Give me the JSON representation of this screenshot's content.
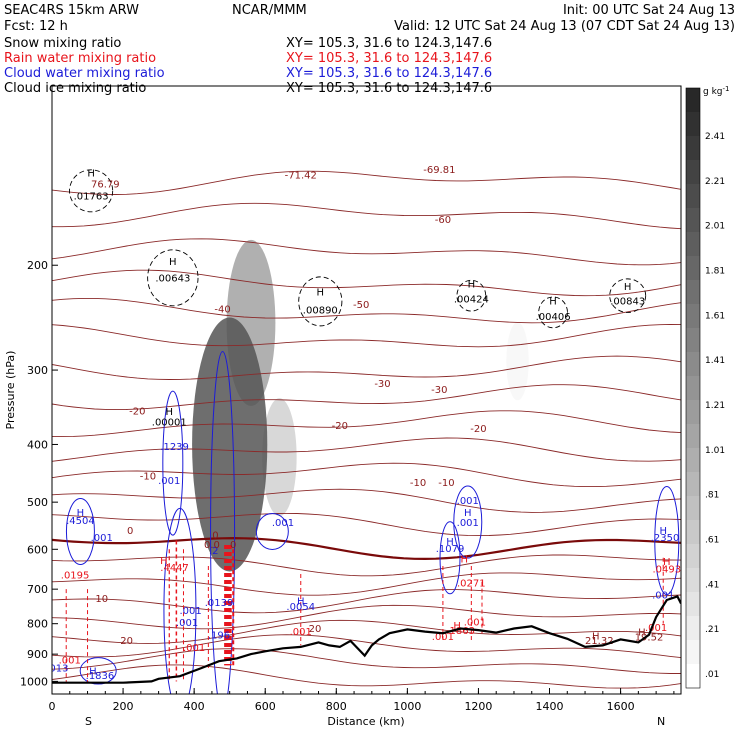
{
  "header": {
    "model": "SEAC4RS 15km ARW",
    "forecast": "Fcst:    12 h",
    "center": "NCAR/MMM",
    "init": "Init: 00 UTC Sat 24 Aug 13",
    "valid": "Valid: 12 UTC Sat 24 Aug 13 (07 CDT Sat 24 Aug 13)"
  },
  "legend": [
    {
      "name": "Snow mixing ratio",
      "xy": "XY= 105.3, 31.6 to 124.3,147.6",
      "color": "#000000"
    },
    {
      "name": "Rain water mixing ratio",
      "xy": "XY= 105.3, 31.6 to 124.3,147.6",
      "color": "#e8141c"
    },
    {
      "name": "Cloud water mixing ratio",
      "xy": "XY= 105.3, 31.6 to 124.3,147.6",
      "color": "#1c1cd8"
    },
    {
      "name": "Cloud ice mixing ratio",
      "xy": "XY= 105.3, 31.6 to 124.3,147.6",
      "color": "#000000"
    }
  ],
  "chart_data": {
    "type": "heatmap",
    "xlabel": "Distance (km)",
    "ylabel": "Pressure (hPa)",
    "x_ticks": [
      0,
      200,
      400,
      600,
      800,
      1000,
      1200,
      1400,
      1600
    ],
    "y_ticks": [
      200,
      300,
      400,
      500,
      600,
      700,
      800,
      900,
      1000
    ],
    "xlim": [
      0,
      1770
    ],
    "ylim": [
      1050,
      100
    ],
    "y_scale": "log",
    "direction_labels": {
      "left": "S",
      "right": "N"
    },
    "colorbar": {
      "units": "g kg",
      "units_sup": "-1",
      "labels": [
        "2.41",
        "2.21",
        "2.01",
        "1.81",
        "1.61",
        "1.41",
        "1.21",
        "1.01",
        ".81",
        ".61",
        ".41",
        ".21",
        ".01"
      ],
      "levels": 25
    },
    "snow_shading": [
      {
        "x": 500,
        "p": 400,
        "value": 2.3
      },
      {
        "x": 560,
        "p": 250,
        "value": 1.2
      },
      {
        "x": 640,
        "p": 420,
        "value": 0.6
      },
      {
        "x": 1310,
        "p": 290,
        "value": 0.1
      }
    ],
    "isotherms": [
      {
        "label": "-71.42",
        "x": 700,
        "p": 143
      },
      {
        "label": "-69.81",
        "x": 1090,
        "p": 140
      },
      {
        "label": "-60",
        "x": 1100,
        "p": 170
      },
      {
        "label": "-50",
        "x": 870,
        "p": 236
      },
      {
        "label": "-40",
        "x": 480,
        "p": 240
      },
      {
        "label": "-30",
        "x": 930,
        "p": 320
      },
      {
        "label": "-30",
        "x": 1090,
        "p": 328
      },
      {
        "label": "-20",
        "x": 240,
        "p": 356
      },
      {
        "label": "-20",
        "x": 810,
        "p": 377
      },
      {
        "label": "-20",
        "x": 1200,
        "p": 381
      },
      {
        "label": "-10",
        "x": 270,
        "p": 458
      },
      {
        "label": "-10",
        "x": 1030,
        "p": 470
      },
      {
        "label": "-10",
        "x": 1110,
        "p": 470
      },
      {
        "label": "0",
        "x": 220,
        "p": 565
      },
      {
        "label": "0",
        "x": 460,
        "p": 575
      },
      {
        "label": "10",
        "x": 140,
        "p": 736
      },
      {
        "label": "20",
        "x": 210,
        "p": 866
      },
      {
        "label": "20",
        "x": 740,
        "p": 826
      }
    ],
    "annotations": [
      {
        "text": "H",
        "x": 110,
        "p": 142,
        "color": "#000000"
      },
      {
        "text": ".01763",
        "x": 110,
        "p": 155,
        "color": "#000000"
      },
      {
        "text": "76.79",
        "x": 150,
        "p": 148,
        "color": "#8b1a1a"
      },
      {
        "text": "H",
        "x": 340,
        "p": 200,
        "color": "#000000"
      },
      {
        "text": ".00643",
        "x": 340,
        "p": 213,
        "color": "#000000"
      },
      {
        "text": "H",
        "x": 755,
        "p": 225,
        "color": "#000000"
      },
      {
        "text": ".00890",
        "x": 755,
        "p": 241,
        "color": "#000000"
      },
      {
        "text": "H",
        "x": 1180,
        "p": 218,
        "color": "#000000"
      },
      {
        "text": ".00424",
        "x": 1180,
        "p": 231,
        "color": "#000000"
      },
      {
        "text": "H",
        "x": 1410,
        "p": 233,
        "color": "#000000"
      },
      {
        "text": ".00406",
        "x": 1410,
        "p": 247,
        "color": "#000000"
      },
      {
        "text": "H",
        "x": 1620,
        "p": 220,
        "color": "#000000"
      },
      {
        "text": ".00843",
        "x": 1620,
        "p": 233,
        "color": "#000000"
      },
      {
        "text": "H",
        "x": 330,
        "p": 357,
        "color": "#000000"
      },
      {
        "text": ".00001",
        "x": 330,
        "p": 372,
        "color": "#000000"
      },
      {
        "text": ".1239",
        "x": 345,
        "p": 409,
        "color": "#1c1cd8"
      },
      {
        "text": ".001",
        "x": 330,
        "p": 466,
        "color": "#1c1cd8"
      },
      {
        "text": "H",
        "x": 80,
        "p": 528,
        "color": "#1c1cd8"
      },
      {
        "text": ".4504",
        "x": 80,
        "p": 544,
        "color": "#1c1cd8"
      },
      {
        "text": ".001",
        "x": 140,
        "p": 581,
        "color": "#1c1cd8"
      },
      {
        "text": ".001",
        "x": 650,
        "p": 548,
        "color": "#1c1cd8"
      },
      {
        "text": ".001",
        "x": 1170,
        "p": 504,
        "color": "#1c1cd8"
      },
      {
        "text": "H",
        "x": 1170,
        "p": 527,
        "color": "#1c1cd8"
      },
      {
        "text": ".001",
        "x": 1170,
        "p": 548,
        "color": "#1c1cd8"
      },
      {
        "text": "H",
        "x": 1120,
        "p": 590,
        "color": "#1c1cd8"
      },
      {
        "text": ".1079",
        "x": 1120,
        "p": 606,
        "color": "#1c1cd8"
      },
      {
        "text": "H",
        "x": 1720,
        "p": 565,
        "color": "#1c1cd8"
      },
      {
        "text": ".2350",
        "x": 1725,
        "p": 581,
        "color": "#1c1cd8"
      },
      {
        "text": "H",
        "x": 315,
        "p": 635,
        "color": "#e8141c"
      },
      {
        "text": ".4447",
        "x": 345,
        "p": 653,
        "color": "#e8141c"
      },
      {
        "text": ".0195",
        "x": 65,
        "p": 672,
        "color": "#e8141c"
      },
      {
        "text": ".2",
        "x": 455,
        "p": 611,
        "color": "#1c1cd8"
      },
      {
        "text": "0.0",
        "x": 450,
        "p": 597,
        "color": "#8b1a1a"
      },
      {
        "text": "0",
        "x": 510,
        "p": 597,
        "color": "#8b1a1a"
      },
      {
        "text": "H",
        "x": 700,
        "p": 743,
        "color": "#1c1cd8"
      },
      {
        "text": ".0054",
        "x": 700,
        "p": 759,
        "color": "#1c1cd8"
      },
      {
        "text": ".0139",
        "x": 470,
        "p": 747,
        "color": "#1c1cd8"
      },
      {
        "text": ".001",
        "x": 390,
        "p": 771,
        "color": "#1c1cd8"
      },
      {
        "text": ".001",
        "x": 380,
        "p": 807,
        "color": "#1c1cd8"
      },
      {
        "text": ".196",
        "x": 470,
        "p": 847,
        "color": "#1c1cd8"
      },
      {
        "text": ".001",
        "x": 400,
        "p": 889,
        "color": "#e8141c"
      },
      {
        "text": "H",
        "x": 1160,
        "p": 631,
        "color": "#e8141c"
      },
      {
        "text": ".0271",
        "x": 1180,
        "p": 693,
        "color": "#e8141c"
      },
      {
        "text": "H",
        "x": 1730,
        "p": 637,
        "color": "#e8141c"
      },
      {
        "text": ".0493",
        "x": 1730,
        "p": 656,
        "color": "#e8141c"
      },
      {
        "text": ".001",
        "x": 1720,
        "p": 726,
        "color": "#1c1cd8"
      },
      {
        "text": ".001",
        "x": 1190,
        "p": 806,
        "color": "#e8141c"
      },
      {
        "text": "H",
        "x": 1140,
        "p": 817,
        "color": "#e8141c"
      },
      {
        "text": ".1863",
        "x": 1150,
        "p": 833,
        "color": "#e8141c"
      },
      {
        "text": ".001",
        "x": 1100,
        "p": 852,
        "color": "#e8141c"
      },
      {
        "text": ".001",
        "x": 700,
        "p": 835,
        "color": "#e8141c"
      },
      {
        "text": ".001",
        "x": 1700,
        "p": 823,
        "color": "#e8141c"
      },
      {
        "text": "H",
        "x": 1530,
        "p": 850,
        "color": "#8b1a1a"
      },
      {
        "text": "21.32",
        "x": 1540,
        "p": 866,
        "color": "#8b1a1a"
      },
      {
        "text": "H",
        "x": 1660,
        "p": 838,
        "color": "#8b1a1a"
      },
      {
        "text": "19.52",
        "x": 1680,
        "p": 853,
        "color": "#8b1a1a"
      },
      {
        "text": ".001",
        "x": 50,
        "p": 933,
        "color": "#e8141c"
      },
      {
        "text": ".013",
        "x": 15,
        "p": 962,
        "color": "#1c1cd8"
      },
      {
        "text": "H",
        "x": 115,
        "p": 974,
        "color": "#1c1cd8"
      },
      {
        "text": ".1836",
        "x": 135,
        "p": 990,
        "color": "#1c1cd8"
      }
    ],
    "terrain": [
      [
        0,
        1005
      ],
      [
        100,
        1005
      ],
      [
        200,
        1005
      ],
      [
        280,
        1000
      ],
      [
        300,
        990
      ],
      [
        360,
        980
      ],
      [
        420,
        950
      ],
      [
        470,
        925
      ],
      [
        520,
        915
      ],
      [
        560,
        900
      ],
      [
        600,
        890
      ],
      [
        650,
        880
      ],
      [
        700,
        875
      ],
      [
        750,
        860
      ],
      [
        780,
        870
      ],
      [
        810,
        875
      ],
      [
        840,
        855
      ],
      [
        860,
        880
      ],
      [
        880,
        905
      ],
      [
        900,
        870
      ],
      [
        920,
        850
      ],
      [
        950,
        830
      ],
      [
        1000,
        818
      ],
      [
        1050,
        825
      ],
      [
        1100,
        830
      ],
      [
        1150,
        815
      ],
      [
        1200,
        820
      ],
      [
        1250,
        828
      ],
      [
        1300,
        815
      ],
      [
        1350,
        808
      ],
      [
        1400,
        830
      ],
      [
        1450,
        848
      ],
      [
        1500,
        875
      ],
      [
        1550,
        870
      ],
      [
        1600,
        850
      ],
      [
        1650,
        860
      ],
      [
        1680,
        835
      ],
      [
        1700,
        780
      ],
      [
        1730,
        730
      ],
      [
        1760,
        720
      ],
      [
        1770,
        740
      ]
    ]
  }
}
